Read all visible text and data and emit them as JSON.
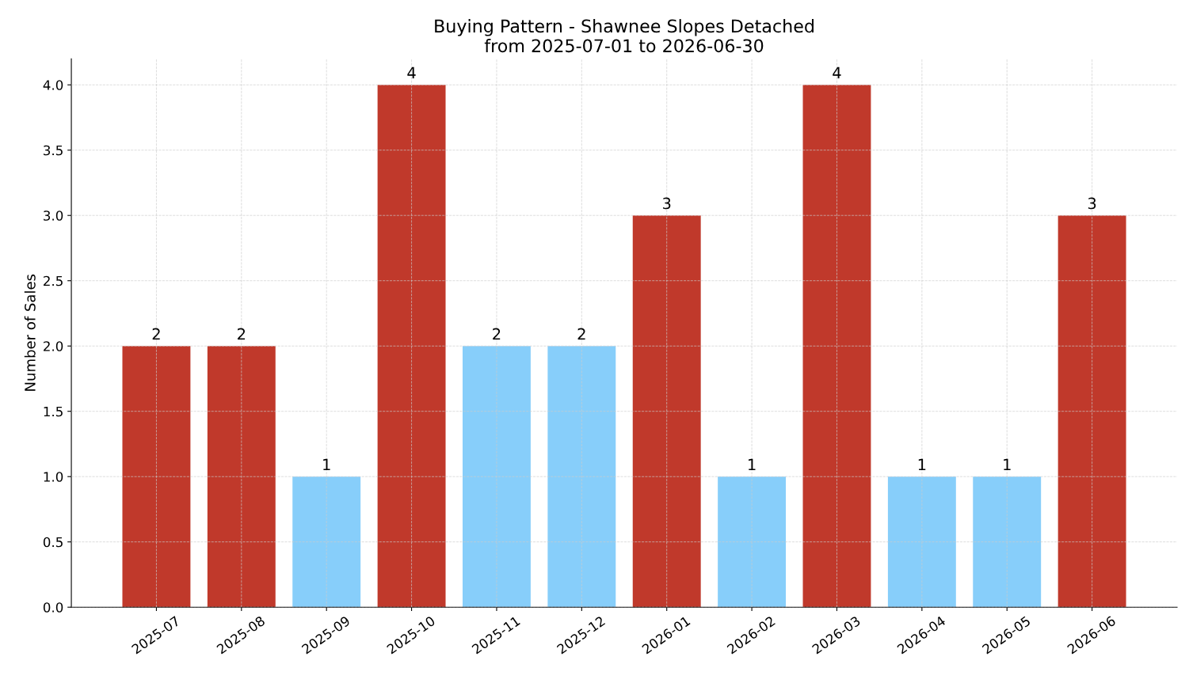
{
  "chart_data": {
    "type": "bar",
    "title": "Buying Pattern - Shawnee Slopes Detached\nfrom 2025-07-01 to 2026-06-30",
    "ylabel": "Number of Sales",
    "categories": [
      "2025-07",
      "2025-08",
      "2025-09",
      "2025-10",
      "2025-11",
      "2025-12",
      "2026-01",
      "2026-02",
      "2026-03",
      "2026-04",
      "2026-05",
      "2026-06"
    ],
    "values": [
      2,
      2,
      1,
      4,
      2,
      2,
      3,
      1,
      4,
      1,
      1,
      3
    ],
    "colors": [
      "#c0392b",
      "#c0392b",
      "#87cefa",
      "#c0392b",
      "#87cefa",
      "#87cefa",
      "#c0392b",
      "#87cefa",
      "#c0392b",
      "#87cefa",
      "#87cefa",
      "#c0392b"
    ],
    "ylim": [
      0,
      4.2
    ],
    "yticks": [
      {
        "value": 0,
        "label": "0.0"
      },
      {
        "value": 0.5,
        "label": "0.5"
      },
      {
        "value": 1,
        "label": "1.0"
      },
      {
        "value": 1.5,
        "label": "1.5"
      },
      {
        "value": 2,
        "label": "2.0"
      },
      {
        "value": 2.5,
        "label": "2.5"
      },
      {
        "value": 3,
        "label": "3.0"
      },
      {
        "value": 3.5,
        "label": "3.5"
      },
      {
        "value": 4,
        "label": "4.0"
      }
    ],
    "grid": true,
    "data_labels": true
  }
}
